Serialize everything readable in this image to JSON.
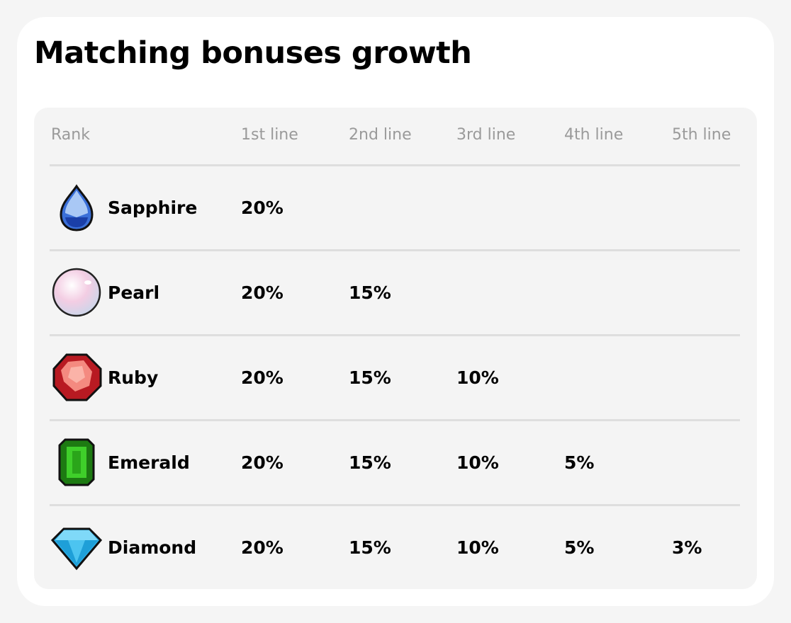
{
  "title": "Matching bonuses growth",
  "headers": [
    "Rank",
    "1st line",
    "2nd line",
    "3rd line",
    "4th line",
    "5th line"
  ],
  "rows": [
    {
      "rank": "Sapphire",
      "icon": "sapphire-icon",
      "values": [
        "20%",
        "",
        "",
        "",
        ""
      ]
    },
    {
      "rank": "Pearl",
      "icon": "pearl-icon",
      "values": [
        "20%",
        "15%",
        "",
        "",
        ""
      ]
    },
    {
      "rank": "Ruby",
      "icon": "ruby-icon",
      "values": [
        "20%",
        "15%",
        "10%",
        "",
        ""
      ]
    },
    {
      "rank": "Emerald",
      "icon": "emerald-icon",
      "values": [
        "20%",
        "15%",
        "10%",
        "5%",
        ""
      ]
    },
    {
      "rank": "Diamond",
      "icon": "diamond-icon",
      "values": [
        "20%",
        "15%",
        "10%",
        "5%",
        "3%"
      ]
    }
  ]
}
